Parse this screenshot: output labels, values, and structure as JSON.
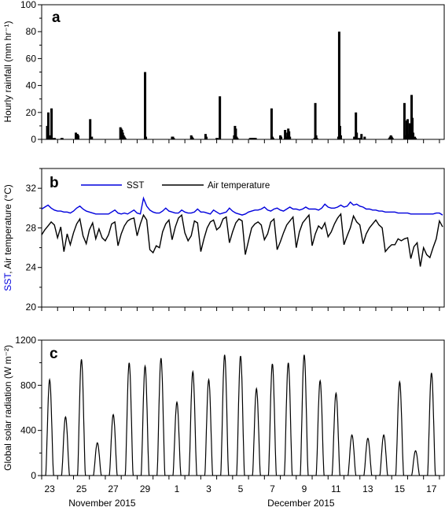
{
  "chart_data": [
    {
      "panel": "a",
      "type": "bar",
      "ylabel": "Hourly rainfall (mm hr⁻¹)",
      "ylim": [
        0,
        100
      ],
      "yticks": [
        0,
        20,
        40,
        60,
        80,
        100
      ],
      "xlim": [
        0,
        25.3
      ],
      "grid": false,
      "series": [
        {
          "color": "#000000",
          "x": [
            0.35,
            0.42,
            0.55,
            0.62,
            0.75,
            0.82,
            1.25,
            1.3,
            2.15,
            2.2,
            2.25,
            2.3,
            3.05,
            3.1,
            3.15,
            4.95,
            5.0,
            5.05,
            5.1,
            5.15,
            5.2,
            5.25,
            6.5,
            6.55,
            8.2,
            8.25,
            8.3,
            9.4,
            9.45,
            9.5,
            10.3,
            10.35,
            11.0,
            11.05,
            11.2,
            12.1,
            12.15,
            12.2,
            12.25,
            12.3,
            13.1,
            13.15,
            13.2,
            13.25,
            13.3,
            13.35,
            13.4,
            13.45,
            14.45,
            14.5,
            14.55,
            15.0,
            15.05,
            15.3,
            15.35,
            15.45,
            15.5,
            15.55,
            15.6,
            17.15,
            17.2,
            17.25,
            17.3,
            18.65,
            18.7,
            18.75,
            18.8,
            19.65,
            19.7,
            19.75,
            19.8,
            19.9,
            20.0,
            20.1,
            20.3,
            21.85,
            21.9,
            21.95,
            22.0,
            22.05,
            22.8,
            22.85,
            22.95,
            23.0,
            23.1,
            23.15,
            23.2,
            23.25,
            23.3,
            23.35,
            23.45,
            23.5
          ],
          "values": [
            10,
            20,
            3,
            23,
            1,
            1,
            1,
            1,
            5,
            4,
            4,
            3,
            15,
            1,
            2,
            9,
            8,
            7,
            5,
            3,
            2,
            1,
            50,
            2,
            2,
            2,
            1,
            3,
            2,
            1,
            4,
            2,
            1,
            1,
            32,
            3,
            10,
            8,
            2,
            1,
            1,
            1,
            1,
            1,
            1,
            1,
            1,
            1,
            23,
            2,
            1,
            3,
            2,
            7,
            2,
            5,
            8,
            6,
            2,
            1,
            27,
            3,
            1,
            2,
            80,
            10,
            3,
            2,
            2,
            20,
            5,
            1,
            1,
            4,
            2,
            1,
            2,
            3,
            2,
            1,
            27,
            3,
            14,
            15,
            4,
            12,
            5,
            33,
            16,
            5,
            2,
            1
          ]
        }
      ]
    },
    {
      "panel": "b",
      "type": "line",
      "ylabel_parts": [
        "SST",
        ", Air temperature (°C)"
      ],
      "ylim": [
        20,
        34
      ],
      "yticks": [
        20,
        24,
        28,
        32
      ],
      "xlim": [
        0,
        25.3
      ],
      "grid": false,
      "legend_position": "top",
      "series": [
        {
          "name": "SST",
          "color": "#0000dd",
          "x": [
            0.0,
            0.2,
            0.4,
            0.6,
            0.8,
            1.0,
            1.2,
            1.4,
            1.6,
            1.8,
            2.0,
            2.2,
            2.4,
            2.6,
            2.8,
            3.0,
            3.2,
            3.4,
            3.6,
            3.8,
            4.0,
            4.2,
            4.4,
            4.6,
            4.8,
            5.0,
            5.2,
            5.4,
            5.6,
            5.8,
            6.0,
            6.2,
            6.4,
            6.6,
            6.8,
            7.0,
            7.2,
            7.4,
            7.6,
            7.8,
            8.0,
            8.2,
            8.4,
            8.6,
            8.8,
            9.0,
            9.2,
            9.4,
            9.6,
            9.8,
            10.0,
            10.2,
            10.4,
            10.6,
            10.8,
            11.0,
            11.2,
            11.4,
            11.6,
            11.8,
            12.0,
            12.2,
            12.4,
            12.6,
            12.8,
            13.0,
            13.2,
            13.4,
            13.6,
            13.8,
            14.0,
            14.2,
            14.4,
            14.6,
            14.8,
            15.0,
            15.2,
            15.4,
            15.6,
            15.8,
            16.0,
            16.2,
            16.4,
            16.6,
            16.8,
            17.0,
            17.2,
            17.4,
            17.6,
            17.8,
            18.0,
            18.2,
            18.4,
            18.6,
            18.8,
            19.0,
            19.2,
            19.4,
            19.6,
            19.8,
            20.0,
            20.2,
            20.4,
            20.6,
            20.8,
            21.0,
            21.2,
            21.4,
            21.6,
            21.8,
            22.0,
            22.2,
            22.4,
            22.6,
            22.8,
            23.0,
            23.2,
            23.4,
            23.6,
            23.8,
            24.0,
            24.2,
            24.4,
            24.6,
            24.8,
            25.0,
            25.2
          ],
          "values": [
            29.9,
            30.1,
            30.3,
            30.0,
            29.8,
            29.7,
            29.7,
            29.6,
            29.6,
            29.5,
            29.7,
            30.0,
            30.2,
            29.9,
            29.7,
            29.6,
            29.5,
            29.4,
            29.4,
            29.4,
            29.4,
            29.4,
            29.6,
            29.8,
            29.5,
            29.4,
            29.5,
            29.4,
            29.6,
            29.8,
            29.5,
            29.4,
            31.0,
            30.2,
            29.8,
            29.6,
            29.5,
            29.5,
            29.7,
            30.0,
            29.7,
            29.6,
            29.5,
            29.5,
            29.8,
            29.6,
            29.5,
            29.5,
            29.6,
            29.9,
            29.6,
            29.6,
            29.5,
            29.4,
            29.8,
            29.6,
            29.4,
            29.5,
            29.6,
            30.0,
            29.7,
            29.5,
            29.4,
            29.3,
            29.4,
            29.6,
            29.7,
            29.8,
            29.8,
            29.9,
            30.1,
            29.8,
            29.7,
            29.9,
            30.0,
            29.8,
            29.7,
            29.9,
            30.1,
            29.9,
            29.9,
            29.8,
            29.9,
            30.1,
            29.9,
            29.9,
            29.9,
            29.8,
            30.0,
            30.4,
            30.1,
            30.0,
            30.0,
            30.1,
            30.3,
            30.1,
            30.2,
            30.6,
            30.3,
            30.4,
            30.2,
            30.1,
            29.9,
            29.9,
            29.8,
            29.8,
            29.7,
            29.7,
            29.6,
            29.6,
            29.6,
            29.6,
            29.5,
            29.5,
            29.5,
            29.5,
            29.4,
            29.4,
            29.4,
            29.4,
            29.4,
            29.4,
            29.4,
            29.4,
            29.5,
            29.5,
            29.3
          ]
        },
        {
          "name": "Air temperature",
          "color": "#000000",
          "x": [
            0.0,
            0.2,
            0.4,
            0.6,
            0.8,
            1.0,
            1.2,
            1.4,
            1.6,
            1.8,
            2.0,
            2.2,
            2.4,
            2.6,
            2.8,
            3.0,
            3.2,
            3.4,
            3.6,
            3.8,
            4.0,
            4.2,
            4.4,
            4.6,
            4.8,
            5.0,
            5.2,
            5.4,
            5.6,
            5.8,
            6.0,
            6.2,
            6.4,
            6.6,
            6.8,
            7.0,
            7.2,
            7.4,
            7.6,
            7.8,
            8.0,
            8.2,
            8.4,
            8.6,
            8.8,
            9.0,
            9.2,
            9.4,
            9.6,
            9.8,
            10.0,
            10.2,
            10.4,
            10.6,
            10.8,
            11.0,
            11.2,
            11.4,
            11.6,
            11.8,
            12.0,
            12.2,
            12.4,
            12.6,
            12.8,
            13.0,
            13.2,
            13.4,
            13.6,
            13.8,
            14.0,
            14.2,
            14.4,
            14.6,
            14.8,
            15.0,
            15.2,
            15.4,
            15.6,
            15.8,
            16.0,
            16.2,
            16.4,
            16.6,
            16.8,
            17.0,
            17.2,
            17.4,
            17.6,
            17.8,
            18.0,
            18.2,
            18.4,
            18.6,
            18.8,
            19.0,
            19.2,
            19.4,
            19.6,
            19.8,
            20.0,
            20.2,
            20.4,
            20.6,
            20.8,
            21.0,
            21.2,
            21.4,
            21.6,
            21.8,
            22.0,
            22.2,
            22.4,
            22.6,
            22.8,
            23.0,
            23.2,
            23.4,
            23.6,
            23.8,
            24.0,
            24.2,
            24.4,
            24.6,
            24.8,
            25.0,
            25.2
          ],
          "values": [
            27.3,
            27.8,
            28.2,
            28.6,
            28.3,
            27.0,
            28.1,
            25.6,
            27.4,
            26.3,
            27.5,
            28.4,
            28.9,
            27.2,
            26.4,
            27.8,
            28.5,
            26.9,
            27.9,
            27.0,
            26.7,
            27.3,
            28.4,
            28.6,
            26.2,
            27.4,
            28.2,
            28.7,
            28.9,
            29.0,
            27.2,
            28.4,
            29.3,
            28.8,
            25.8,
            25.5,
            26.2,
            26.0,
            27.6,
            28.4,
            28.8,
            26.8,
            28.1,
            29.0,
            29.3,
            27.5,
            26.7,
            27.2,
            28.7,
            28.5,
            25.6,
            26.9,
            28.0,
            28.6,
            28.8,
            27.8,
            28.1,
            28.9,
            29.1,
            26.5,
            27.6,
            28.5,
            28.9,
            28.7,
            25.3,
            26.7,
            28.0,
            28.4,
            28.6,
            28.3,
            26.8,
            27.4,
            28.6,
            28.9,
            25.8,
            26.6,
            27.5,
            28.3,
            28.7,
            29.1,
            26.0,
            27.6,
            28.5,
            28.9,
            29.3,
            26.2,
            27.4,
            28.2,
            27.9,
            28.5,
            27.1,
            27.6,
            28.4,
            29.0,
            29.4,
            26.3,
            27.2,
            28.0,
            29.2,
            28.6,
            28.3,
            26.4,
            27.4,
            28.0,
            28.4,
            28.8,
            28.3,
            28.0,
            25.6,
            26.0,
            26.3,
            26.3,
            26.9,
            26.7,
            26.9,
            27.0,
            24.9,
            26.1,
            26.5,
            24.1,
            26.0,
            25.3,
            25.0,
            26.0,
            26.9,
            28.7,
            28.1
          ]
        }
      ]
    },
    {
      "panel": "c",
      "type": "line",
      "ylabel": "Global solar radiation (W m⁻²)",
      "ylim": [
        0,
        1200
      ],
      "yticks": [
        0,
        400,
        800,
        1200
      ],
      "xlim": [
        0,
        25.3
      ],
      "grid": false,
      "xtick_positions": [
        0,
        1,
        2,
        3,
        4,
        5,
        6,
        7,
        8,
        9,
        10,
        11,
        12,
        13,
        14,
        15,
        16,
        17,
        18,
        19,
        20,
        21,
        22,
        23,
        24,
        25
      ],
      "xtick_labels": [
        {
          "label": "23",
          "x": 0.5
        },
        {
          "label": "25",
          "x": 2.5
        },
        {
          "label": "27",
          "x": 4.5
        },
        {
          "label": "29",
          "x": 6.5
        },
        {
          "label": "1",
          "x": 8.5
        },
        {
          "label": "3",
          "x": 10.5
        },
        {
          "label": "5",
          "x": 12.5
        },
        {
          "label": "7",
          "x": 14.5
        },
        {
          "label": "9",
          "x": 16.5
        },
        {
          "label": "11",
          "x": 18.5
        },
        {
          "label": "13",
          "x": 20.5
        },
        {
          "label": "15",
          "x": 22.5
        },
        {
          "label": "17",
          "x": 24.5
        }
      ],
      "month_labels": [
        {
          "label": "November 2015",
          "x": 3.8
        },
        {
          "label": "December 2015",
          "x": 16.3
        }
      ],
      "series": [
        {
          "color": "#000000",
          "daily_peak_x": [
            0.5,
            1.45,
            2.55,
            3.5,
            4.55,
            5.5,
            6.55,
            7.55,
            8.55,
            9.55,
            10.55,
            11.55,
            12.55,
            13.55,
            14.55,
            15.55,
            16.55,
            17.55,
            18.55,
            19.5,
            20.55,
            21.55,
            22.55,
            23.5,
            24.5
          ],
          "daily_peak_values": [
            850,
            520,
            1030,
            290,
            540,
            1000,
            970,
            1040,
            650,
            920,
            850,
            1070,
            1060,
            770,
            990,
            1000,
            1070,
            840,
            730,
            360,
            330,
            360,
            830,
            220,
            910
          ]
        }
      ]
    }
  ]
}
